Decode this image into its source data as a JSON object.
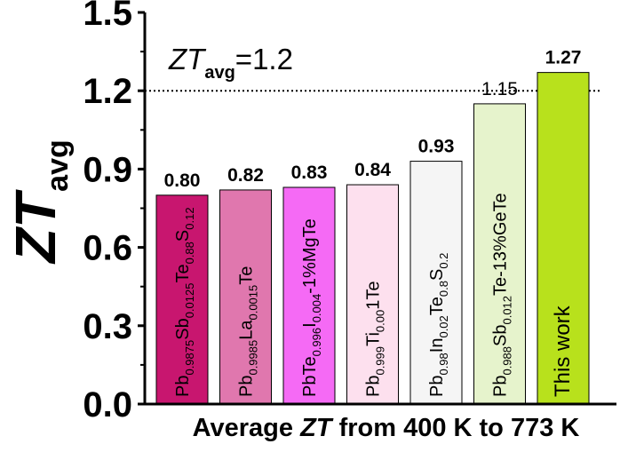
{
  "chart_data": {
    "type": "bar",
    "title": "",
    "xlabel": {
      "prefix": "Average ",
      "italic": "ZT",
      "suffix": " from 400 K to 773 K"
    },
    "ylabel": {
      "main": "ZT",
      "sub": "avg"
    },
    "ylim": [
      0.0,
      1.5
    ],
    "yticks": [
      "0.0",
      "0.3",
      "0.6",
      "0.9",
      "1.2",
      "1.5"
    ],
    "reference_line": {
      "value": 1.2,
      "label_main": "ZT",
      "label_sub": "avg",
      "label_suffix": "=1.2"
    },
    "bars": [
      {
        "value": 0.8,
        "value_label": "0.80",
        "color": "#c8166f",
        "label": [
          [
            "Pb",
            ""
          ],
          [
            "0.9875",
            "sub"
          ],
          [
            "Sb",
            ""
          ],
          [
            "0.0125",
            "sub"
          ],
          [
            "Te",
            ""
          ],
          [
            "0.88",
            "sub"
          ],
          [
            "S",
            ""
          ],
          [
            "0.12",
            "sub"
          ]
        ]
      },
      {
        "value": 0.82,
        "value_label": "0.82",
        "color": "#e077ae",
        "label": [
          [
            "Pb",
            ""
          ],
          [
            "0.9985",
            "sub"
          ],
          [
            "La",
            ""
          ],
          [
            "0.0015",
            "sub"
          ],
          [
            "Te",
            ""
          ]
        ]
      },
      {
        "value": 0.83,
        "value_label": "0.83",
        "color": "#f56af5",
        "label": [
          [
            "PbTe",
            ""
          ],
          [
            "0.996",
            "sub"
          ],
          [
            "I",
            ""
          ],
          [
            "0.004",
            "sub"
          ],
          [
            "-1%MgTe",
            ""
          ]
        ]
      },
      {
        "value": 0.84,
        "value_label": "0.84",
        "color": "#fde0ee",
        "label": [
          [
            "Pb",
            ""
          ],
          [
            "0.999",
            "sub"
          ],
          [
            "Ti",
            ""
          ],
          [
            "0.00",
            "sub"
          ],
          [
            "1Te",
            ""
          ]
        ]
      },
      {
        "value": 0.93,
        "value_label": "0.93",
        "color": "#f5f5f5",
        "label": [
          [
            "Pb",
            ""
          ],
          [
            "0.98",
            "sub"
          ],
          [
            "In",
            ""
          ],
          [
            "0.02",
            "sub"
          ],
          [
            "Te",
            ""
          ],
          [
            "0.8",
            "sub"
          ],
          [
            "S",
            ""
          ],
          [
            "0.2",
            "sub"
          ]
        ]
      },
      {
        "value": 1.15,
        "value_label": "1.15",
        "color": "#e6f3cc",
        "light": true,
        "label": [
          [
            "Pb",
            ""
          ],
          [
            "0.988",
            "sub"
          ],
          [
            "Sb",
            ""
          ],
          [
            "0.012",
            "sub"
          ],
          [
            "Te-13%GeTe",
            ""
          ]
        ]
      },
      {
        "value": 1.27,
        "value_label": "1.27",
        "color": "#b8e11c",
        "label": [
          [
            "This work",
            ""
          ]
        ]
      }
    ]
  }
}
